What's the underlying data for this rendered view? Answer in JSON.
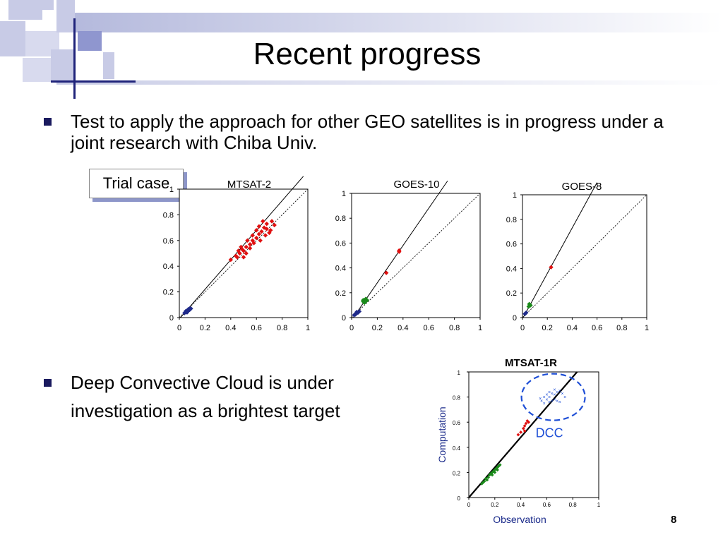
{
  "slide": {
    "title": "Recent progress",
    "bullets": [
      {
        "text": "Test to apply the approach for other GEO satellites is in progress under a joint research with Chiba Univ."
      },
      {
        "line1": "Deep Convective Cloud is under",
        "line2": "investigation as a brightest target"
      }
    ],
    "trial_label": "Trial case",
    "page_number": "8"
  },
  "chart_data": [
    {
      "type": "scatter",
      "title": "MTSAT-2",
      "xlim": [
        0,
        1
      ],
      "ylim": [
        0,
        1
      ],
      "x_ticks": [
        "0",
        "0.2",
        "0.4",
        "0.6",
        "0.8",
        "1"
      ],
      "y_ticks": [
        "0",
        "0.2",
        "0.4",
        "0.6",
        "0.8",
        "1"
      ],
      "fit_line": {
        "slope": 1.15,
        "intercept": -0.01
      },
      "one_to_one_line": true,
      "series": [
        {
          "color": "#1f2a8a",
          "points": [
            [
              0.04,
              0.035
            ],
            [
              0.05,
              0.045
            ],
            [
              0.06,
              0.05
            ],
            [
              0.07,
              0.055
            ],
            [
              0.08,
              0.06
            ],
            [
              0.06,
              0.04
            ],
            [
              0.07,
              0.065
            ],
            [
              0.08,
              0.07
            ],
            [
              0.05,
              0.05
            ],
            [
              0.09,
              0.07
            ],
            [
              0.055,
              0.045
            ],
            [
              0.075,
              0.06
            ]
          ]
        },
        {
          "color": "#e01010",
          "points": [
            [
              0.4,
              0.45
            ],
            [
              0.44,
              0.48
            ],
            [
              0.47,
              0.5
            ],
            [
              0.5,
              0.52
            ],
            [
              0.52,
              0.55
            ],
            [
              0.55,
              0.57
            ],
            [
              0.57,
              0.6
            ],
            [
              0.6,
              0.62
            ],
            [
              0.62,
              0.65
            ],
            [
              0.64,
              0.67
            ],
            [
              0.66,
              0.7
            ],
            [
              0.68,
              0.73
            ],
            [
              0.72,
              0.75
            ],
            [
              0.74,
              0.72
            ],
            [
              0.7,
              0.66
            ],
            [
              0.67,
              0.64
            ],
            [
              0.63,
              0.6
            ],
            [
              0.58,
              0.58
            ],
            [
              0.55,
              0.54
            ],
            [
              0.52,
              0.5
            ],
            [
              0.5,
              0.47
            ],
            [
              0.46,
              0.52
            ],
            [
              0.48,
              0.55
            ],
            [
              0.53,
              0.6
            ],
            [
              0.57,
              0.64
            ],
            [
              0.6,
              0.68
            ],
            [
              0.62,
              0.71
            ],
            [
              0.65,
              0.75
            ],
            [
              0.68,
              0.69
            ],
            [
              0.71,
              0.68
            ],
            [
              0.45,
              0.47
            ],
            [
              0.49,
              0.53
            ]
          ]
        }
      ]
    },
    {
      "type": "scatter",
      "title": "GOES-10",
      "xlim": [
        0,
        1
      ],
      "ylim": [
        0,
        1
      ],
      "x_ticks": [
        "0",
        "0.2",
        "0.4",
        "0.6",
        "0.8",
        "1"
      ],
      "y_ticks": [
        "0",
        "0.2",
        "0.4",
        "0.6",
        "0.8",
        "1"
      ],
      "fit_line": {
        "slope": 1.5,
        "intercept": -0.02
      },
      "one_to_one_line": true,
      "series": [
        {
          "color": "#1f2a8a",
          "points": [
            [
              0.02,
              0.02
            ],
            [
              0.03,
              0.03
            ],
            [
              0.04,
              0.035
            ],
            [
              0.05,
              0.04
            ],
            [
              0.03,
              0.025
            ],
            [
              0.04,
              0.045
            ],
            [
              0.06,
              0.05
            ]
          ]
        },
        {
          "color": "#1a8a1a",
          "points": [
            [
              0.09,
              0.13
            ],
            [
              0.1,
              0.14
            ],
            [
              0.11,
              0.13
            ],
            [
              0.12,
              0.14
            ],
            [
              0.1,
              0.12
            ],
            [
              0.11,
              0.15
            ],
            [
              0.09,
              0.14
            ]
          ]
        },
        {
          "color": "#e01010",
          "points": [
            [
              0.27,
              0.36
            ],
            [
              0.37,
              0.53
            ],
            [
              0.37,
              0.54
            ]
          ]
        }
      ]
    },
    {
      "type": "scatter",
      "title": "GOES-8",
      "xlim": [
        0,
        1
      ],
      "ylim": [
        0,
        1
      ],
      "x_ticks": [
        "0",
        "0.2",
        "0.4",
        "0.6",
        "0.8",
        "1"
      ],
      "y_ticks": [
        "0",
        "0.2",
        "0.4",
        "0.6",
        "0.8",
        "1"
      ],
      "fit_line": {
        "slope": 1.85,
        "intercept": -0.01
      },
      "one_to_one_line": true,
      "series": [
        {
          "color": "#1f2a8a",
          "points": [
            [
              0.02,
              0.03
            ],
            [
              0.025,
              0.035
            ],
            [
              0.03,
              0.04
            ]
          ]
        },
        {
          "color": "#1a8a1a",
          "points": [
            [
              0.05,
              0.09
            ],
            [
              0.06,
              0.1
            ],
            [
              0.055,
              0.11
            ],
            [
              0.065,
              0.1
            ]
          ]
        },
        {
          "color": "#e01010",
          "points": [
            [
              0.23,
              0.41
            ]
          ]
        }
      ]
    },
    {
      "type": "scatter",
      "title": "MTSAT-1R",
      "xlabel": "Observation",
      "ylabel": "Computation",
      "xlim": [
        0,
        1
      ],
      "ylim": [
        0,
        1
      ],
      "x_ticks": [
        "0",
        "0.2",
        "0.4",
        "0.6",
        "0.8",
        "1"
      ],
      "y_ticks": [
        "0",
        "0.2",
        "0.4",
        "0.6",
        "0.8",
        "1"
      ],
      "fit_line": {
        "slope": 1.2,
        "intercept": 0.0
      },
      "annotation": {
        "text": "DCC",
        "color": "#1f4fd6"
      },
      "series": [
        {
          "color": "#1a8a1a",
          "points": [
            [
              0.1,
              0.11
            ],
            [
              0.12,
              0.13
            ],
            [
              0.13,
              0.15
            ],
            [
              0.15,
              0.16
            ],
            [
              0.16,
              0.18
            ],
            [
              0.17,
              0.19
            ],
            [
              0.18,
              0.2
            ],
            [
              0.19,
              0.21
            ],
            [
              0.2,
              0.22
            ],
            [
              0.21,
              0.23
            ],
            [
              0.22,
              0.24
            ],
            [
              0.23,
              0.25
            ],
            [
              0.24,
              0.26
            ],
            [
              0.14,
              0.14
            ],
            [
              0.11,
              0.12
            ],
            [
              0.18,
              0.18
            ],
            [
              0.2,
              0.2
            ],
            [
              0.22,
              0.22
            ]
          ]
        },
        {
          "color": "#e01010",
          "points": [
            [
              0.4,
              0.52
            ],
            [
              0.42,
              0.55
            ],
            [
              0.43,
              0.57
            ],
            [
              0.44,
              0.59
            ],
            [
              0.45,
              0.61
            ],
            [
              0.46,
              0.6
            ],
            [
              0.43,
              0.53
            ],
            [
              0.38,
              0.5
            ]
          ]
        },
        {
          "color": "#1f4fd6",
          "points": [
            [
              0.55,
              0.79
            ],
            [
              0.58,
              0.8
            ],
            [
              0.6,
              0.82
            ],
            [
              0.62,
              0.84
            ],
            [
              0.64,
              0.83
            ],
            [
              0.66,
              0.82
            ],
            [
              0.68,
              0.84
            ],
            [
              0.7,
              0.85
            ],
            [
              0.72,
              0.83
            ],
            [
              0.74,
              0.8
            ],
            [
              0.7,
              0.76
            ],
            [
              0.68,
              0.77
            ],
            [
              0.66,
              0.78
            ],
            [
              0.64,
              0.77
            ],
            [
              0.62,
              0.76
            ],
            [
              0.6,
              0.78
            ],
            [
              0.58,
              0.75
            ],
            [
              0.62,
              0.8
            ],
            [
              0.66,
              0.86
            ],
            [
              0.56,
              0.77
            ]
          ]
        }
      ]
    }
  ]
}
